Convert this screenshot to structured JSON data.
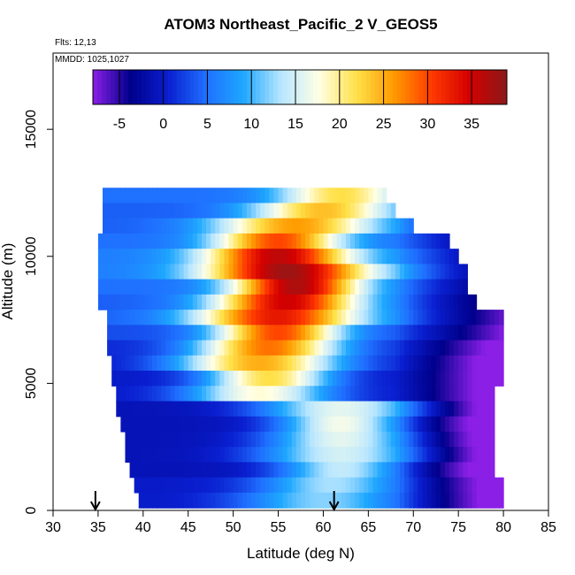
{
  "chart_data": {
    "type": "heatmap",
    "title": "ATOM3 Northeast_Pacific_2 V_GEOS5",
    "annotations": {
      "flights": "Flts: 12,13",
      "mmdd": "MMDD: 1025,1027"
    },
    "xlabel": "Latitude (deg N)",
    "ylabel": "Altitude (m)",
    "xlim": [
      30,
      85
    ],
    "ylim": [
      0,
      18000
    ],
    "x_ticks": [
      "30",
      "35",
      "40",
      "45",
      "50",
      "55",
      "60",
      "65",
      "70",
      "75",
      "80",
      "85"
    ],
    "y_ticks": [
      "0",
      "5000",
      "10000",
      "15000"
    ],
    "colorbar": {
      "min": -8,
      "max": 39,
      "tick_labels": [
        "-5",
        "0",
        "5",
        "10",
        "15",
        "20",
        "25",
        "30",
        "35"
      ],
      "colors": [
        "#8b1fe6",
        "#00008b",
        "#0a1fd0",
        "#1f6fff",
        "#1ea7ff",
        "#b8e6ff",
        "#ffffe6",
        "#ffe14a",
        "#ff9a00",
        "#ff3a00",
        "#d40000",
        "#8b1a1a"
      ]
    },
    "arrows_at_latitude": [
      34.7,
      61.2
    ],
    "layers": [
      {
        "alt": 12400,
        "lat_min": 35.5,
        "lat_max": 67.0,
        "peak_lat": 62.0,
        "peak": 22,
        "base": 5
      },
      {
        "alt": 11800,
        "lat_min": 35.5,
        "lat_max": 68.0,
        "peak_lat": 60.0,
        "peak": 24,
        "base": 4
      },
      {
        "alt": 11200,
        "lat_min": 35.5,
        "lat_max": 70.0,
        "peak_lat": 57.0,
        "peak": 26,
        "base": 4
      },
      {
        "alt": 10600,
        "lat_min": 35.0,
        "lat_max": 74.0,
        "peak_lat": 55.0,
        "peak": 30,
        "base": 5
      },
      {
        "alt": 10000,
        "lat_min": 35.0,
        "lat_max": 75.0,
        "peak_lat": 55.0,
        "peak": 36,
        "base": 6
      },
      {
        "alt": 9400,
        "lat_min": 35.0,
        "lat_max": 76.0,
        "peak_lat": 56.0,
        "peak": 38,
        "base": 6
      },
      {
        "alt": 8800,
        "lat_min": 35.0,
        "lat_max": 76.0,
        "peak_lat": 57.0,
        "peak": 37,
        "base": 5
      },
      {
        "alt": 8200,
        "lat_min": 35.0,
        "lat_max": 77.0,
        "peak_lat": 56.0,
        "peak": 35,
        "base": 4
      },
      {
        "alt": 7600,
        "lat_min": 36.0,
        "lat_max": 80.0,
        "peak_lat": 55.0,
        "peak": 33,
        "base": 4
      },
      {
        "alt": 7000,
        "lat_min": 36.0,
        "lat_max": 80.0,
        "peak_lat": 55.0,
        "peak": 30,
        "base": 3
      },
      {
        "alt": 6400,
        "lat_min": 36.0,
        "lat_max": 80.0,
        "peak_lat": 54.0,
        "peak": 28,
        "base": 1
      },
      {
        "alt": 5800,
        "lat_min": 36.5,
        "lat_max": 80.0,
        "peak_lat": 53.0,
        "peak": 25,
        "base": 0
      },
      {
        "alt": 5200,
        "lat_min": 36.5,
        "lat_max": 80.0,
        "peak_lat": 54.0,
        "peak": 22,
        "base": 0
      },
      {
        "alt": 4600,
        "lat_min": 37.0,
        "lat_max": 79.0,
        "peak_lat": 53.0,
        "peak": 18,
        "base": 0
      },
      {
        "alt": 4000,
        "lat_min": 37.0,
        "lat_max": 79.0,
        "peak_lat": 62.0,
        "peak": 16,
        "base": -1
      },
      {
        "alt": 3400,
        "lat_min": 37.5,
        "lat_max": 79.0,
        "peak_lat": 62.0,
        "peak": 17,
        "base": -1
      },
      {
        "alt": 2800,
        "lat_min": 38.0,
        "lat_max": 79.0,
        "peak_lat": 62.0,
        "peak": 16,
        "base": -1
      },
      {
        "alt": 2200,
        "lat_min": 38.0,
        "lat_max": 79.0,
        "peak_lat": 62.0,
        "peak": 15,
        "base": -1
      },
      {
        "alt": 1600,
        "lat_min": 38.5,
        "lat_max": 79.0,
        "peak_lat": 62.0,
        "peak": 14,
        "base": -1
      },
      {
        "alt": 1000,
        "lat_min": 39.0,
        "lat_max": 80.0,
        "peak_lat": 61.0,
        "peak": 13,
        "base": 0
      },
      {
        "alt": 400,
        "lat_min": 39.5,
        "lat_max": 80.0,
        "peak_lat": 60.0,
        "peak": 12,
        "base": 0
      }
    ]
  }
}
